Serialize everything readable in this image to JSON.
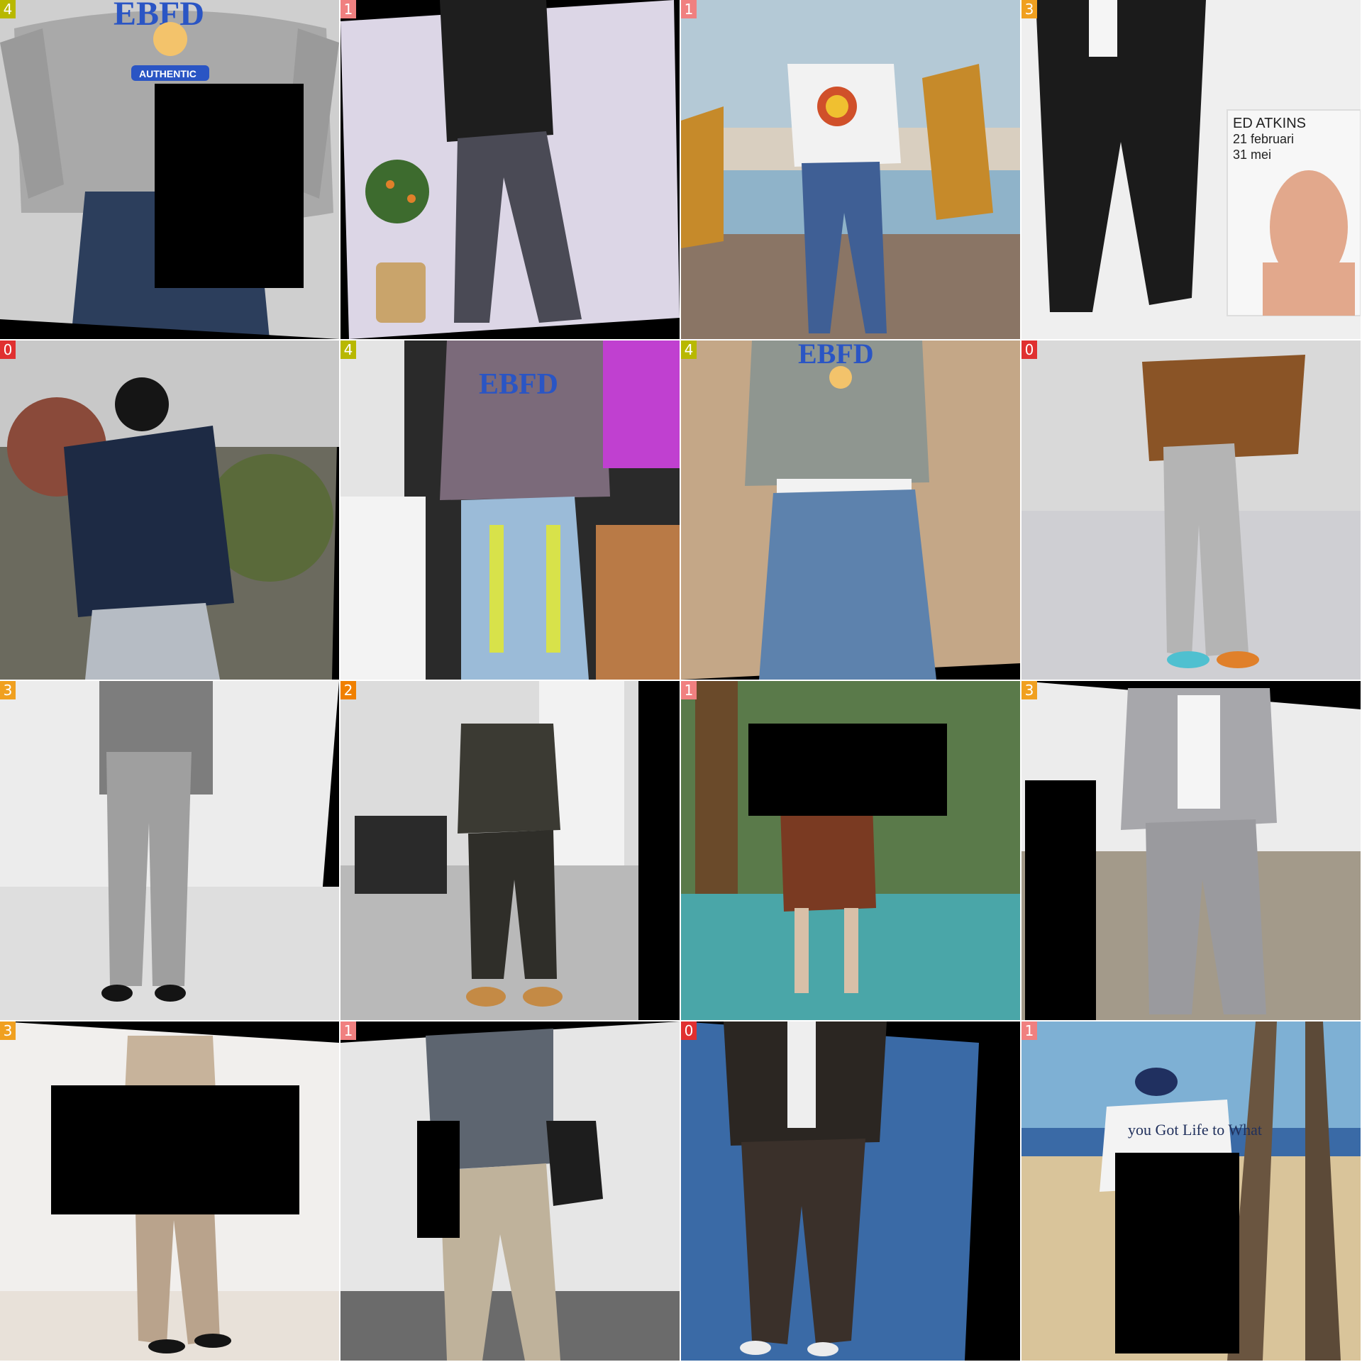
{
  "grid": {
    "tiles": [
      {
        "label": "4",
        "label_color": "#b8b800",
        "scene": "grey crewneck sweatshirt with blue varsity print, dark jeans",
        "print_text": "EBFD",
        "print_sub": "AUTHENTIC"
      },
      {
        "label": "1",
        "label_color": "#f08080",
        "scene": "black t-shirt, charcoal cargo trousers, white drape with potted plant"
      },
      {
        "label": "1",
        "label_color": "#f08080",
        "scene": "white graphic tee, wide blue jeans, seaside boardwalk sign"
      },
      {
        "label": "3",
        "label_color": "#f0a020",
        "scene": "black suit, white poster on wall",
        "poster_title": "ED ATKINS",
        "poster_line1": "21 februari",
        "poster_line2": "31 mei"
      },
      {
        "label": "0",
        "label_color": "#e03030",
        "scene": "navy puffer jacket, grey sweatpants, black beanie"
      },
      {
        "label": "4",
        "label_color": "#b8b800",
        "scene": "colour-distorted sweatshirt and jeans",
        "print_text": "EBFD"
      },
      {
        "label": "4",
        "label_color": "#b8b800",
        "scene": "grey sweatshirt, wide light-wash jeans, beige backdrop",
        "print_text": "EBFD"
      },
      {
        "label": "0",
        "label_color": "#e03030",
        "scene": "brown puffer jacket, grey joggers, orange sneakers"
      },
      {
        "label": "3",
        "label_color": "#f0a020",
        "scene": "grey blazer and trousers, white studio"
      },
      {
        "label": "2",
        "label_color": "#f08000",
        "scene": "dark hoodie, jogger pants, tan boots, office interior"
      },
      {
        "label": "1",
        "label_color": "#f08080",
        "scene": "colour-distorted shorts outfit, path and trees"
      },
      {
        "label": "3",
        "label_color": "#f0a020",
        "scene": "light grey blazer, white shirt, grey trousers"
      },
      {
        "label": "3",
        "label_color": "#f0a020",
        "scene": "beige blazer and trousers, black loafers, white curtain"
      },
      {
        "label": "1",
        "label_color": "#f08080",
        "scene": "grey graphic tee, beige wide trousers, shoulder bag"
      },
      {
        "label": "0",
        "label_color": "#e03030",
        "scene": "dark jacket, dark trousers, blue water background"
      },
      {
        "label": "1",
        "label_color": "#f08080",
        "scene": "white tee, navy cap, beach with palm trees",
        "shirt_text": "you Got Life to What"
      }
    ]
  }
}
